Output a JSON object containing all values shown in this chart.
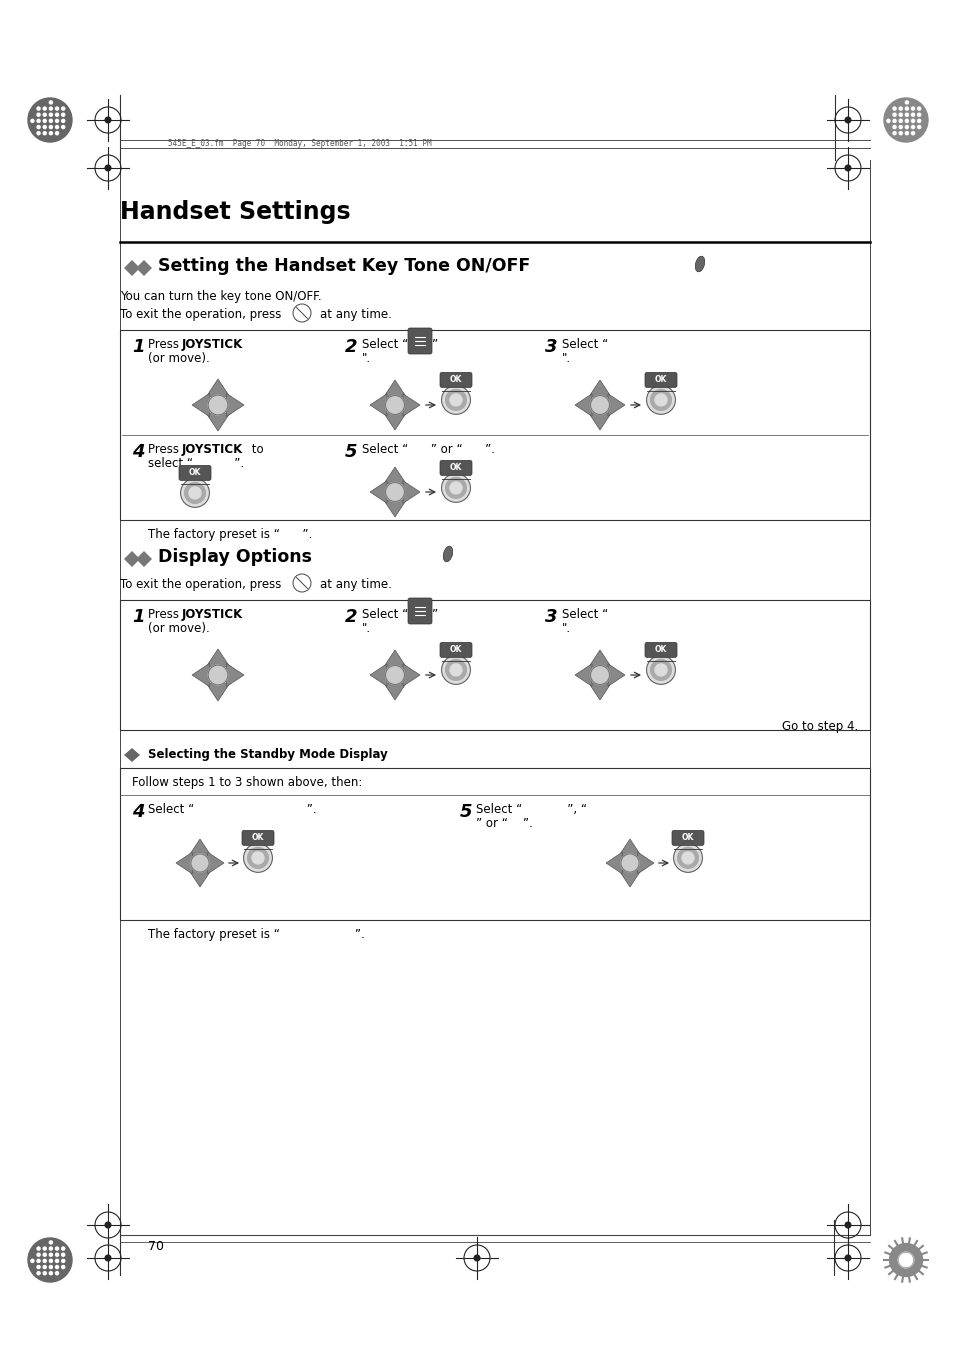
{
  "bg_color": "#ffffff",
  "page_width": 9.54,
  "page_height": 13.51,
  "header_text": "545E_E_03.fm  Page 70  Monday, September 1, 2003  1:51 PM",
  "main_title": "Handset Settings",
  "section1_title": "Setting the Handset Key Tone ON/OFF",
  "section1_desc1": "You can turn the key tone ON/OFF.",
  "section1_desc2": "To exit the operation, press        at any time.",
  "section2_title": "Display Options",
  "section2_desc": "To exit the operation, press        at any time.",
  "subsection_title": "Selecting the Standby Mode Display",
  "page_number": "70",
  "factory_preset1": "The factory preset is “      ”.",
  "factory_preset2": "The factory preset is “                    ”.",
  "goto_step4": "Go to step 4.",
  "box3_header": "Follow steps 1 to 3 shown above, then:"
}
